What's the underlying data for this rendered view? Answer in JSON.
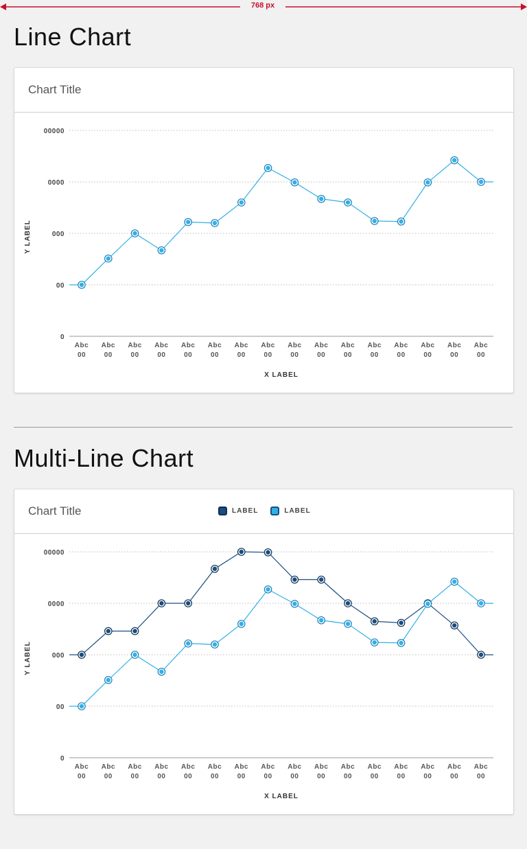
{
  "ruler": {
    "label": "768 px",
    "color": "#c8102e"
  },
  "sections": [
    {
      "heading": "Line Chart",
      "card_title": "Chart Title"
    },
    {
      "heading": "Multi-Line Chart",
      "card_title": "Chart Title"
    }
  ],
  "colors": {
    "light_series": "#2fb0e6",
    "dark_series": "#1a4d80",
    "grid": "#bdbdbd",
    "axis_text": "#444"
  },
  "chart_data": [
    {
      "type": "line",
      "title": "Chart Title",
      "xlabel": "X LABEL",
      "ylabel": "Y LABEL",
      "categories": [
        "Abc 00",
        "Abc 00",
        "Abc 00",
        "Abc 00",
        "Abc 00",
        "Abc 00",
        "Abc 00",
        "Abc 00",
        "Abc 00",
        "Abc 00",
        "Abc 00",
        "Abc 00",
        "Abc 00",
        "Abc 00",
        "Abc 00",
        "Abc 00"
      ],
      "yticks": [
        "0",
        "00",
        "000",
        "0000",
        "00000"
      ],
      "ylim": [
        0,
        4
      ],
      "grid": "dotted",
      "series": [
        {
          "color": "light",
          "values": [
            1.0,
            1.51,
            2.0,
            1.67,
            2.22,
            2.2,
            2.6,
            3.27,
            2.99,
            2.67,
            2.6,
            2.24,
            2.23,
            2.99,
            3.42,
            3.0
          ]
        }
      ]
    },
    {
      "type": "line",
      "title": "Chart Title",
      "xlabel": "X LABEL",
      "ylabel": "Y LABEL",
      "categories": [
        "Abc 00",
        "Abc 00",
        "Abc 00",
        "Abc 00",
        "Abc 00",
        "Abc 00",
        "Abc 00",
        "Abc 00",
        "Abc 00",
        "Abc 00",
        "Abc 00",
        "Abc 00",
        "Abc 00",
        "Abc 00",
        "Abc 00",
        "Abc 00"
      ],
      "yticks": [
        "0",
        "00",
        "000",
        "0000",
        "00000"
      ],
      "ylim": [
        0,
        4
      ],
      "grid": "dotted",
      "legend": {
        "position": "top",
        "items": [
          {
            "name": "LABEL",
            "color": "dark"
          },
          {
            "name": "LABEL",
            "color": "light"
          }
        ]
      },
      "series": [
        {
          "name": "LABEL",
          "color": "dark",
          "values": [
            2.0,
            2.46,
            2.46,
            3.0,
            3.0,
            3.67,
            4.0,
            3.99,
            3.46,
            3.46,
            3.0,
            2.65,
            2.62,
            3.0,
            2.57,
            2.0
          ]
        },
        {
          "name": "LABEL",
          "color": "light",
          "values": [
            1.0,
            1.51,
            2.0,
            1.67,
            2.22,
            2.2,
            2.6,
            3.27,
            2.99,
            2.67,
            2.6,
            2.24,
            2.23,
            2.99,
            3.42,
            3.0
          ]
        }
      ]
    }
  ]
}
